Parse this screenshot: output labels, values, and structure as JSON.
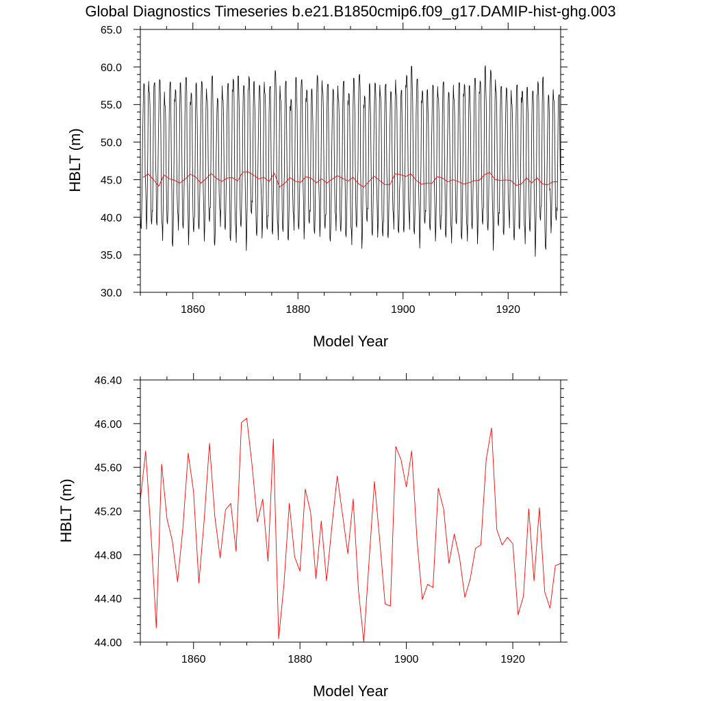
{
  "figure": {
    "title": "Global Diagnostics Timeseries b.e21.B1850cmip6.f09_g17.DAMIP-hist-ghg.003"
  },
  "chart_data": [
    {
      "type": "line",
      "xlabel": "Model Year",
      "ylabel": "HBLT (m)",
      "xlim": [
        1850,
        1930
      ],
      "ylim": [
        30,
        65
      ],
      "xticks": [
        "1860",
        "1880",
        "1900",
        "1920"
      ],
      "xtick_values": [
        1860,
        1880,
        1900,
        1920
      ],
      "yticks": [
        "30.0",
        "35.0",
        "40.0",
        "45.0",
        "50.0",
        "55.0",
        "60.0",
        "65.0"
      ],
      "ytick_values": [
        30,
        35,
        40,
        45,
        50,
        55,
        60,
        65
      ],
      "series": [
        {
          "kind": "monthly",
          "color": "#000000",
          "x_start": 1850.0,
          "x_step": 0.08333,
          "annual_max": [
            57.8,
            58.1,
            57.9,
            58.7,
            56.7,
            58.0,
            57.7,
            57.9,
            58.6,
            57.6,
            57.9,
            58.1,
            57.1,
            58.8,
            56.2,
            57.5,
            57.8,
            59.1,
            58.8,
            57.5,
            59.8,
            58.1,
            57.6,
            58.0,
            57.4,
            59.9,
            57.5,
            58.1,
            56.4,
            58.6,
            58.3,
            58.0,
            57.1,
            58.9,
            58.2,
            57.7,
            57.4,
            57.5,
            58.1,
            57.2,
            58.5,
            59.0,
            57.2,
            57.8,
            57.9,
            57.6,
            57.7,
            57.1,
            58.3,
            56.9,
            59.6,
            60.1,
            58.4,
            57.9,
            57.0,
            57.6,
            57.4,
            58.0,
            57.0,
            57.6,
            57.9,
            58.4,
            57.5,
            58.5,
            59.2,
            60.2,
            59.6,
            58.3,
            57.4,
            57.6,
            56.9,
            57.6,
            57.5,
            57.3,
            56.8,
            59.1,
            58.7,
            56.3,
            57.0,
            56.3
          ],
          "annual_min": [
            37.3,
            38.4,
            36.8,
            38.1,
            35.6,
            37.2,
            35.5,
            37.4,
            36.9,
            36.1,
            35.3,
            37.2,
            36.8,
            37.1,
            35.4,
            37.6,
            36.4,
            36.2,
            35.4,
            37.2,
            35.1,
            37.9,
            36.3,
            37.2,
            36.1,
            36.7,
            35.6,
            36.1,
            36.5,
            37.3,
            36.8,
            36.9,
            36.6,
            36.5,
            37.4,
            36.2,
            35.9,
            37.0,
            36.1,
            36.9,
            35.1,
            37.0,
            35.6,
            36.8,
            36.3,
            37.3,
            35.1,
            36.4,
            37.1,
            36.0,
            37.4,
            37.2,
            36.1,
            35.6,
            36.6,
            37.1,
            36.8,
            36.0,
            36.5,
            35.1,
            37.2,
            36.5,
            35.8,
            36.8,
            36.1,
            36.2,
            36.9,
            35.6,
            36.6,
            36.8,
            37.5,
            34.9,
            38.0,
            35.4,
            36.6,
            34.3,
            36.9,
            34.4,
            37.9,
            37.5
          ]
        },
        {
          "kind": "annual_mean",
          "color": "#ff0000",
          "x": [
            1850.5,
            1851.5,
            1852.5,
            1853.5,
            1854.5,
            1855.5,
            1856.5,
            1857.5,
            1858.5,
            1859.5,
            1860.5,
            1861.5,
            1862.5,
            1863.5,
            1864.5,
            1865.5,
            1866.5,
            1867.5,
            1868.5,
            1869.5,
            1870.5,
            1871.5,
            1872.5,
            1873.5,
            1874.5,
            1875.5,
            1876.5,
            1877.5,
            1878.5,
            1879.5,
            1880.5,
            1881.5,
            1882.5,
            1883.5,
            1884.5,
            1885.5,
            1886.5,
            1887.5,
            1888.5,
            1889.5,
            1890.5,
            1891.5,
            1892.5,
            1893.5,
            1894.5,
            1895.5,
            1896.5,
            1897.5,
            1898.5,
            1899.5,
            1900.5,
            1901.5,
            1902.5,
            1903.5,
            1904.5,
            1905.5,
            1906.5,
            1907.5,
            1908.5,
            1909.5,
            1910.5,
            1911.5,
            1912.5,
            1913.5,
            1914.5,
            1915.5,
            1916.5,
            1917.5,
            1918.5,
            1919.5,
            1920.5,
            1921.5,
            1922.5,
            1923.5,
            1924.5,
            1925.5,
            1926.5,
            1927.5,
            1928.5,
            1929.5
          ],
          "y": [
            45.3,
            45.75,
            45.0,
            44.13,
            45.63,
            45.13,
            44.93,
            44.55,
            45.05,
            45.73,
            45.38,
            44.54,
            45.12,
            45.82,
            45.15,
            44.77,
            45.21,
            45.27,
            44.83,
            46.01,
            46.05,
            45.62,
            45.1,
            45.31,
            44.74,
            45.86,
            44.03,
            44.53,
            45.27,
            44.78,
            44.65,
            45.4,
            45.19,
            44.58,
            45.11,
            44.56,
            45.06,
            45.52,
            45.17,
            44.81,
            45.31,
            44.47,
            44.0,
            44.75,
            45.47,
            44.93,
            44.35,
            44.33,
            45.79,
            45.67,
            45.42,
            45.75,
            44.93,
            44.39,
            44.53,
            44.5,
            45.41,
            45.22,
            44.72,
            44.99,
            44.77,
            44.41,
            44.58,
            44.86,
            44.89,
            45.67,
            45.96,
            45.03,
            44.89,
            44.96,
            44.9,
            44.25,
            44.42,
            45.22,
            44.56,
            45.23,
            44.46,
            44.31,
            44.7,
            44.72
          ]
        }
      ]
    },
    {
      "type": "line",
      "xlabel": "Model Year",
      "ylabel": "HBLT (m)",
      "xlim": [
        1850,
        1929
      ],
      "ylim": [
        44.0,
        46.4
      ],
      "xticks": [
        "1860",
        "1880",
        "1900",
        "1920"
      ],
      "xtick_values": [
        1860,
        1880,
        1900,
        1920
      ],
      "yticks": [
        "44.00",
        "44.40",
        "44.80",
        "45.20",
        "45.60",
        "46.00",
        "46.40"
      ],
      "ytick_values": [
        44.0,
        44.4,
        44.8,
        45.2,
        45.6,
        46.0,
        46.4
      ],
      "series": [
        {
          "kind": "annual_mean",
          "color": "#ff0000",
          "x": [
            1850,
            1851,
            1852,
            1853,
            1854,
            1855,
            1856,
            1857,
            1858,
            1859,
            1860,
            1861,
            1862,
            1863,
            1864,
            1865,
            1866,
            1867,
            1868,
            1869,
            1870,
            1871,
            1872,
            1873,
            1874,
            1875,
            1876,
            1877,
            1878,
            1879,
            1880,
            1881,
            1882,
            1883,
            1884,
            1885,
            1886,
            1887,
            1888,
            1889,
            1890,
            1891,
            1892,
            1893,
            1894,
            1895,
            1896,
            1897,
            1898,
            1899,
            1900,
            1901,
            1902,
            1903,
            1904,
            1905,
            1906,
            1907,
            1908,
            1909,
            1910,
            1911,
            1912,
            1913,
            1914,
            1915,
            1916,
            1917,
            1918,
            1919,
            1920,
            1921,
            1922,
            1923,
            1924,
            1925,
            1926,
            1927,
            1928,
            1929
          ],
          "y": [
            45.3,
            45.75,
            45.0,
            44.13,
            45.63,
            45.13,
            44.93,
            44.55,
            45.05,
            45.73,
            45.38,
            44.54,
            45.12,
            45.82,
            45.15,
            44.77,
            45.21,
            45.27,
            44.83,
            46.01,
            46.05,
            45.62,
            45.1,
            45.31,
            44.74,
            45.86,
            44.03,
            44.53,
            45.27,
            44.78,
            44.65,
            45.4,
            45.19,
            44.58,
            45.11,
            44.56,
            45.06,
            45.52,
            45.17,
            44.81,
            45.31,
            44.47,
            44.0,
            44.75,
            45.47,
            44.93,
            44.35,
            44.33,
            45.79,
            45.67,
            45.42,
            45.75,
            44.93,
            44.39,
            44.53,
            44.5,
            45.41,
            45.22,
            44.72,
            44.99,
            44.77,
            44.41,
            44.58,
            44.86,
            44.89,
            45.67,
            45.96,
            45.03,
            44.89,
            44.96,
            44.9,
            44.25,
            44.42,
            45.22,
            44.56,
            45.23,
            44.46,
            44.31,
            44.7,
            44.72
          ]
        }
      ]
    }
  ]
}
